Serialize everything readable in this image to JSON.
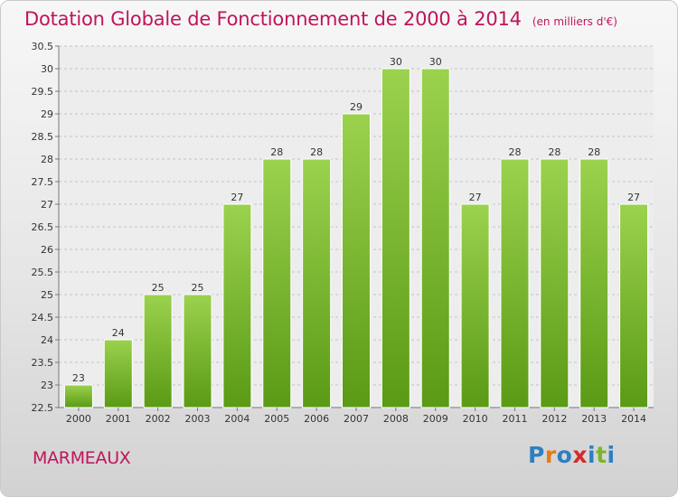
{
  "title": "Dotation Globale de Fonctionnement de 2000 à 2014",
  "unit_note": "(en milliers d'€)",
  "commune": "MARMEAUX",
  "brand": {
    "letters": [
      "P",
      "r",
      "o",
      "x",
      "i",
      "t",
      "i"
    ],
    "colors": [
      "#2e7fc1",
      "#e87a12",
      "#2e7fc1",
      "#d42a2a",
      "#2e7fc1",
      "#7bb62a",
      "#2e7fc1"
    ]
  },
  "colors": {
    "title": "#c0145b",
    "bar_top": "#9bd24e",
    "bar_bottom": "#5a9a14"
  },
  "chart_data": {
    "type": "bar",
    "categories": [
      "2000",
      "2001",
      "2002",
      "2003",
      "2004",
      "2005",
      "2006",
      "2007",
      "2008",
      "2009",
      "2010",
      "2011",
      "2012",
      "2013",
      "2014"
    ],
    "values": [
      23,
      24,
      25,
      25,
      27,
      28,
      28,
      29,
      30,
      30,
      27,
      28,
      28,
      28,
      27
    ],
    "data_labels": [
      "23",
      "24",
      "25",
      "25",
      "27",
      "28",
      "28",
      "29",
      "30",
      "30",
      "27",
      "28",
      "28",
      "28",
      "27"
    ],
    "ylim": [
      22.5,
      30.5
    ],
    "yticks": [
      "22.5",
      "23",
      "23.5",
      "24",
      "24.5",
      "25",
      "25.5",
      "26",
      "26.5",
      "27",
      "27.5",
      "28",
      "28.5",
      "29",
      "29.5",
      "30",
      "30.5"
    ],
    "grid": true,
    "legend": "none"
  }
}
